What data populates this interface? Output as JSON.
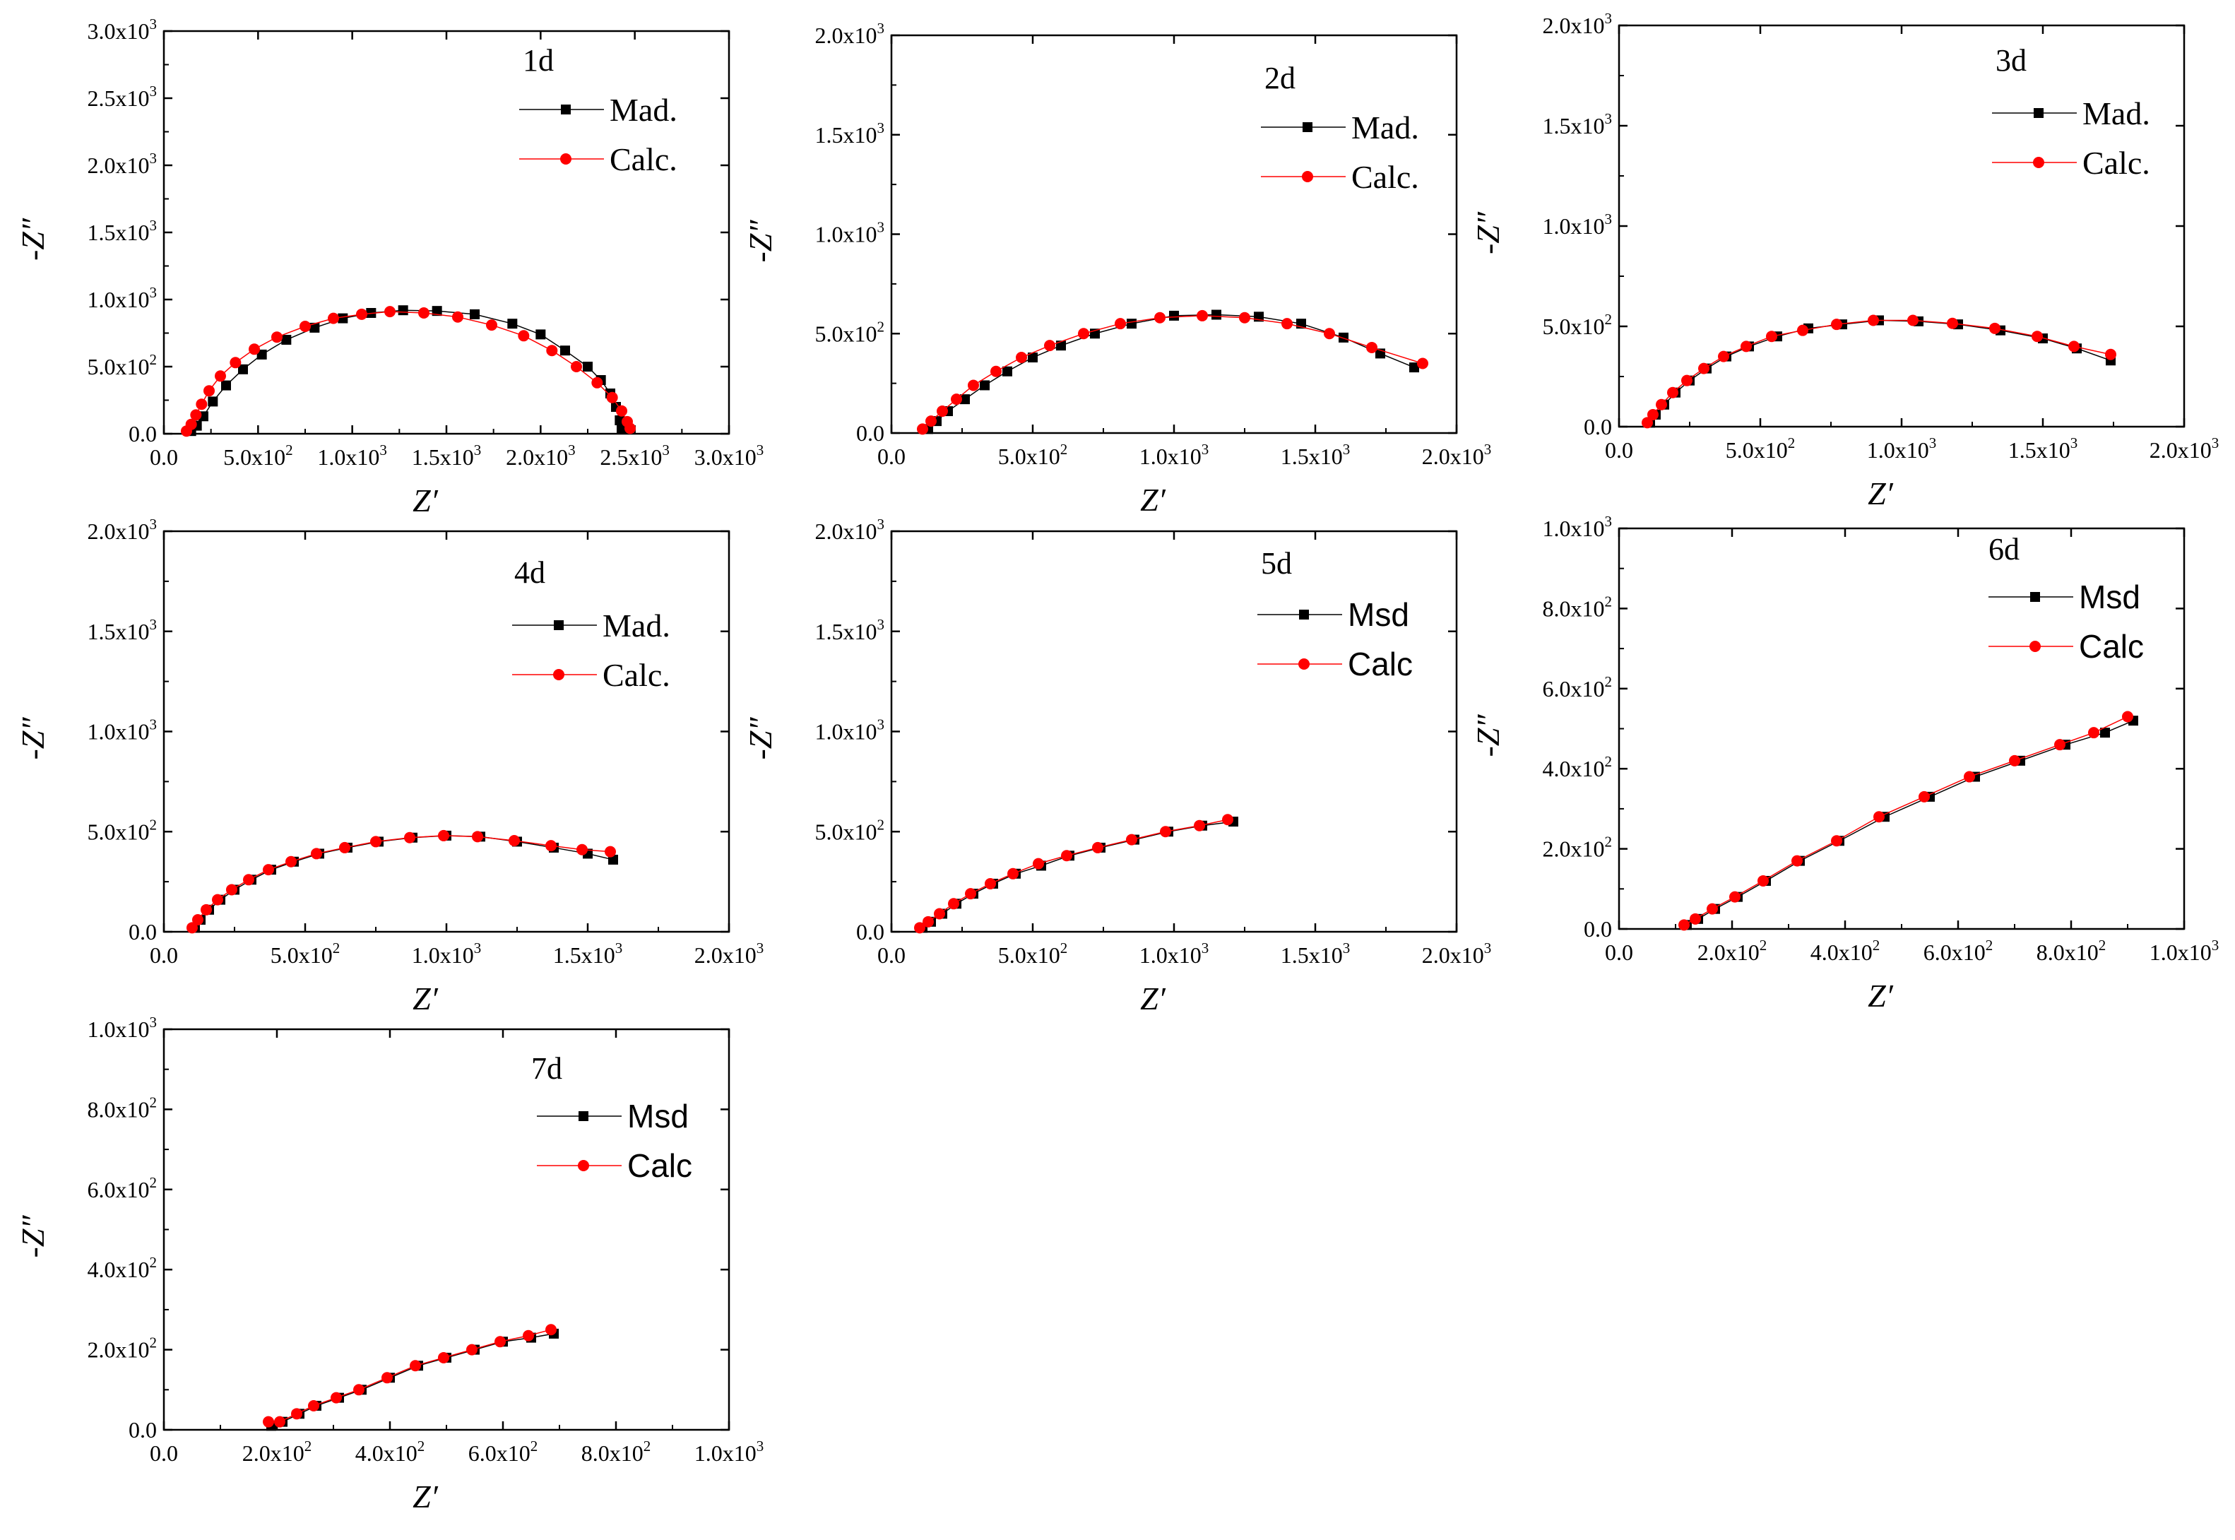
{
  "colors": {
    "measured": "#000000",
    "calculated": "#ff0000",
    "axis": "#000000"
  },
  "chart_data": [
    {
      "type": "scatter",
      "title": "1d",
      "xlabel": "Z′",
      "ylabel": "-Z″",
      "xlim": [
        0,
        3000
      ],
      "ylim": [
        0,
        3000
      ],
      "xticks": [
        0,
        500,
        1000,
        1500,
        2000,
        2500,
        3000
      ],
      "xtick_labels": [
        [
          "0.0",
          ""
        ],
        [
          "5.0x10",
          "2"
        ],
        [
          "1.0x10",
          "3"
        ],
        [
          "1.5x10",
          "3"
        ],
        [
          "2.0x10",
          "3"
        ],
        [
          "2.5x10",
          "3"
        ],
        [
          "3.0x10",
          "3"
        ]
      ],
      "yticks": [
        0,
        500,
        1000,
        1500,
        2000,
        2500,
        3000
      ],
      "ytick_labels": [
        [
          "0.0",
          ""
        ],
        [
          "5.0x10",
          "2"
        ],
        [
          "1.0x10",
          "3"
        ],
        [
          "1.5x10",
          "3"
        ],
        [
          "2.0x10",
          "3"
        ],
        [
          "2.5x10",
          "3"
        ],
        [
          "3.0x10",
          "3"
        ]
      ],
      "legend": {
        "label": "1d",
        "measured": "Mad.",
        "calculated": "Calc.",
        "font": "serif"
      },
      "series": [
        {
          "name": "Mad.",
          "x": [
            145,
            175,
            210,
            260,
            330,
            420,
            520,
            650,
            800,
            950,
            1100,
            1270,
            1450,
            1650,
            1850,
            2000,
            2130,
            2250,
            2320,
            2370,
            2400,
            2420,
            2430
          ],
          "y": [
            20,
            60,
            130,
            240,
            360,
            480,
            590,
            700,
            790,
            860,
            900,
            920,
            915,
            890,
            820,
            740,
            620,
            500,
            400,
            300,
            200,
            100,
            40
          ]
        },
        {
          "name": "Calc.",
          "x": [
            120,
            145,
            170,
            200,
            240,
            300,
            380,
            480,
            600,
            750,
            900,
            1050,
            1200,
            1380,
            1560,
            1740,
            1910,
            2060,
            2190,
            2300,
            2380,
            2430,
            2460,
            2475
          ],
          "y": [
            20,
            70,
            140,
            220,
            320,
            430,
            530,
            630,
            720,
            800,
            860,
            890,
            910,
            900,
            870,
            810,
            730,
            620,
            500,
            380,
            270,
            170,
            90,
            40
          ]
        }
      ]
    },
    {
      "type": "scatter",
      "title": "2d",
      "xlabel": "Z′",
      "ylabel": "-Z″",
      "xlim": [
        0,
        2000
      ],
      "ylim": [
        0,
        2000
      ],
      "xticks": [
        0,
        500,
        1000,
        1500,
        2000
      ],
      "xtick_labels": [
        [
          "0.0",
          ""
        ],
        [
          "5.0x10",
          "2"
        ],
        [
          "1.0x10",
          "3"
        ],
        [
          "1.5x10",
          "3"
        ],
        [
          "2.0x10",
          "3"
        ]
      ],
      "yticks": [
        0,
        500,
        1000,
        1500,
        2000
      ],
      "ytick_labels": [
        [
          "0.0",
          ""
        ],
        [
          "5.0x10",
          "2"
        ],
        [
          "1.0x10",
          "3"
        ],
        [
          "1.5x10",
          "3"
        ],
        [
          "2.0x10",
          "3"
        ]
      ],
      "legend": {
        "label": "2d",
        "measured": "Mad.",
        "calculated": "Calc.",
        "font": "serif"
      },
      "series": [
        {
          "name": "Mad.",
          "x": [
            130,
            160,
            200,
            260,
            330,
            410,
            500,
            600,
            720,
            850,
            1000,
            1150,
            1300,
            1450,
            1600,
            1730,
            1850
          ],
          "y": [
            20,
            60,
            110,
            170,
            240,
            310,
            380,
            440,
            500,
            550,
            590,
            595,
            585,
            550,
            480,
            400,
            330
          ]
        },
        {
          "name": "Calc.",
          "x": [
            110,
            140,
            180,
            230,
            290,
            370,
            460,
            560,
            680,
            810,
            950,
            1100,
            1250,
            1400,
            1550,
            1700,
            1880
          ],
          "y": [
            20,
            60,
            110,
            170,
            240,
            310,
            380,
            440,
            500,
            550,
            580,
            590,
            580,
            550,
            500,
            430,
            350
          ]
        }
      ]
    },
    {
      "type": "scatter",
      "title": "3d",
      "xlabel": "Z′",
      "ylabel": "-Z″",
      "xlim": [
        0,
        2000
      ],
      "ylim": [
        0,
        2000
      ],
      "xticks": [
        0,
        500,
        1000,
        1500,
        2000
      ],
      "xtick_labels": [
        [
          "0.0",
          ""
        ],
        [
          "5.0x10",
          "2"
        ],
        [
          "1.0x10",
          "3"
        ],
        [
          "1.5x10",
          "3"
        ],
        [
          "2.0x10",
          "3"
        ]
      ],
      "yticks": [
        0,
        500,
        1000,
        1500,
        2000
      ],
      "ytick_labels": [
        [
          "0.0",
          ""
        ],
        [
          "5.0x10",
          "2"
        ],
        [
          "1.0x10",
          "3"
        ],
        [
          "1.5x10",
          "3"
        ],
        [
          "2.0x10",
          "3"
        ]
      ],
      "legend": {
        "label": "3d",
        "measured": "Mad.",
        "calculated": "Calc.",
        "font": "serif"
      },
      "series": [
        {
          "name": "Mad.",
          "x": [
            110,
            130,
            160,
            200,
            250,
            310,
            380,
            460,
            560,
            670,
            790,
            920,
            1060,
            1200,
            1350,
            1500,
            1620,
            1740
          ],
          "y": [
            20,
            60,
            110,
            170,
            230,
            290,
            350,
            400,
            450,
            490,
            510,
            530,
            525,
            510,
            480,
            440,
            390,
            330
          ]
        },
        {
          "name": "Calc.",
          "x": [
            100,
            120,
            150,
            190,
            240,
            300,
            370,
            450,
            540,
            650,
            770,
            900,
            1040,
            1180,
            1330,
            1480,
            1610,
            1740
          ],
          "y": [
            20,
            60,
            110,
            170,
            230,
            290,
            350,
            400,
            450,
            480,
            510,
            530,
            530,
            515,
            490,
            450,
            400,
            360
          ]
        }
      ]
    },
    {
      "type": "scatter",
      "title": "4d",
      "xlabel": "Z′",
      "ylabel": "-Z″",
      "xlim": [
        0,
        2000
      ],
      "ylim": [
        0,
        2000
      ],
      "xticks": [
        0,
        500,
        1000,
        1500,
        2000
      ],
      "xtick_labels": [
        [
          "0.0",
          ""
        ],
        [
          "5.0x10",
          "2"
        ],
        [
          "1.0x10",
          "3"
        ],
        [
          "1.5x10",
          "3"
        ],
        [
          "2.0x10",
          "3"
        ]
      ],
      "yticks": [
        0,
        500,
        1000,
        1500,
        2000
      ],
      "ytick_labels": [
        [
          "0.0",
          ""
        ],
        [
          "5.0x10",
          "2"
        ],
        [
          "1.0x10",
          "3"
        ],
        [
          "1.5x10",
          "3"
        ],
        [
          "2.0x10",
          "3"
        ]
      ],
      "legend": {
        "label": "4d",
        "measured": "Mad.",
        "calculated": "Calc.",
        "font": "serif"
      },
      "series": [
        {
          "name": "Mad.",
          "x": [
            110,
            130,
            160,
            200,
            250,
            310,
            380,
            460,
            550,
            650,
            760,
            880,
            1000,
            1120,
            1250,
            1380,
            1500,
            1590
          ],
          "y": [
            20,
            60,
            110,
            160,
            210,
            260,
            310,
            350,
            390,
            420,
            450,
            470,
            480,
            475,
            450,
            420,
            390,
            360
          ]
        },
        {
          "name": "Calc.",
          "x": [
            100,
            120,
            150,
            190,
            240,
            300,
            370,
            450,
            540,
            640,
            750,
            870,
            990,
            1110,
            1240,
            1370,
            1480,
            1580
          ],
          "y": [
            20,
            60,
            110,
            160,
            210,
            260,
            310,
            350,
            390,
            420,
            450,
            470,
            480,
            475,
            455,
            430,
            410,
            400
          ]
        }
      ]
    },
    {
      "type": "scatter",
      "title": "5d",
      "xlabel": "Z′",
      "ylabel": "-Z″",
      "xlim": [
        0,
        2000
      ],
      "ylim": [
        0,
        2000
      ],
      "xticks": [
        0,
        500,
        1000,
        1500,
        2000
      ],
      "xtick_labels": [
        [
          "0.0",
          ""
        ],
        [
          "5.0x10",
          "2"
        ],
        [
          "1.0x10",
          "3"
        ],
        [
          "1.5x10",
          "3"
        ],
        [
          "2.0x10",
          "3"
        ]
      ],
      "yticks": [
        0,
        500,
        1000,
        1500,
        2000
      ],
      "ytick_labels": [
        [
          "0.0",
          ""
        ],
        [
          "5.0x10",
          "2"
        ],
        [
          "1.0x10",
          "3"
        ],
        [
          "1.5x10",
          "3"
        ],
        [
          "2.0x10",
          "3"
        ]
      ],
      "legend": {
        "label": "5d",
        "measured": "Msd",
        "calculated": "Calc",
        "font": "sans"
      },
      "series": [
        {
          "name": "Msd",
          "x": [
            110,
            140,
            180,
            230,
            290,
            360,
            440,
            530,
            630,
            740,
            860,
            980,
            1100,
            1210
          ],
          "y": [
            20,
            50,
            90,
            140,
            190,
            240,
            290,
            330,
            380,
            420,
            460,
            500,
            530,
            550
          ]
        },
        {
          "name": "Calc",
          "x": [
            100,
            130,
            170,
            220,
            280,
            350,
            430,
            520,
            620,
            730,
            850,
            970,
            1090,
            1190
          ],
          "y": [
            20,
            50,
            90,
            140,
            190,
            240,
            290,
            340,
            380,
            420,
            460,
            500,
            530,
            560
          ]
        }
      ]
    },
    {
      "type": "scatter",
      "title": "6d",
      "xlabel": "Z′",
      "ylabel": "-Z″",
      "xlim": [
        0,
        1000
      ],
      "ylim": [
        0,
        1000
      ],
      "xticks": [
        0,
        200,
        400,
        600,
        800,
        1000
      ],
      "xtick_labels": [
        [
          "0.0",
          ""
        ],
        [
          "2.0x10",
          "2"
        ],
        [
          "4.0x10",
          "2"
        ],
        [
          "6.0x10",
          "2"
        ],
        [
          "8.0x10",
          "2"
        ],
        [
          "1.0x10",
          "3"
        ]
      ],
      "yticks": [
        0,
        200,
        400,
        600,
        800,
        1000
      ],
      "ytick_labels": [
        [
          "0.0",
          ""
        ],
        [
          "2.0x10",
          "2"
        ],
        [
          "4.0x10",
          "2"
        ],
        [
          "6.0x10",
          "2"
        ],
        [
          "8.0x10",
          "2"
        ],
        [
          "1.0x10",
          "3"
        ]
      ],
      "legend": {
        "label": "6d",
        "measured": "Msd",
        "calculated": "Calc",
        "font": "sans"
      },
      "series": [
        {
          "name": "Msd",
          "x": [
            120,
            140,
            170,
            210,
            260,
            320,
            390,
            470,
            550,
            630,
            710,
            790,
            860,
            910
          ],
          "y": [
            10,
            25,
            50,
            80,
            120,
            170,
            220,
            280,
            330,
            380,
            420,
            460,
            490,
            520
          ]
        },
        {
          "name": "Calc",
          "x": [
            115,
            135,
            165,
            205,
            255,
            315,
            385,
            460,
            540,
            620,
            700,
            780,
            840,
            900
          ],
          "y": [
            10,
            25,
            50,
            80,
            120,
            170,
            220,
            280,
            330,
            380,
            420,
            460,
            490,
            530
          ]
        }
      ]
    },
    {
      "type": "scatter",
      "title": "7d",
      "xlabel": "Z′",
      "ylabel": "-Z″",
      "xlim": [
        0,
        1000
      ],
      "ylim": [
        0,
        1000
      ],
      "xticks": [
        0,
        200,
        400,
        600,
        800,
        1000
      ],
      "xtick_labels": [
        [
          "0.0",
          ""
        ],
        [
          "2.0x10",
          "2"
        ],
        [
          "4.0x10",
          "2"
        ],
        [
          "6.0x10",
          "2"
        ],
        [
          "8.0x10",
          "2"
        ],
        [
          "1.0x10",
          "3"
        ]
      ],
      "yticks": [
        0,
        200,
        400,
        600,
        800,
        1000
      ],
      "ytick_labels": [
        [
          "0.0",
          ""
        ],
        [
          "2.0x10",
          "2"
        ],
        [
          "4.0x10",
          "2"
        ],
        [
          "6.0x10",
          "2"
        ],
        [
          "8.0x10",
          "2"
        ],
        [
          "1.0x10",
          "3"
        ]
      ],
      "legend": {
        "label": "7d",
        "measured": "Msd",
        "calculated": "Calc",
        "font": "sans"
      },
      "series": [
        {
          "name": "Msd",
          "x": [
            190,
            210,
            240,
            270,
            310,
            350,
            400,
            450,
            500,
            550,
            600,
            650,
            690
          ],
          "y": [
            10,
            20,
            40,
            60,
            80,
            100,
            130,
            160,
            180,
            200,
            220,
            230,
            240
          ]
        },
        {
          "name": "Calc",
          "x": [
            185,
            205,
            235,
            265,
            305,
            345,
            395,
            445,
            495,
            545,
            595,
            645,
            685
          ],
          "y": [
            20,
            20,
            40,
            60,
            80,
            100,
            130,
            160,
            180,
            200,
            220,
            235,
            250
          ]
        }
      ]
    }
  ]
}
